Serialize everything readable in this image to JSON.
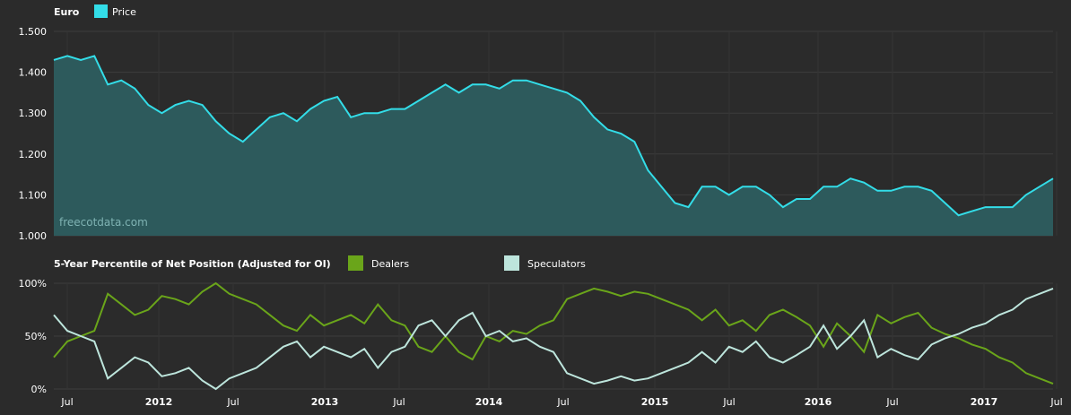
{
  "colors": {
    "background": "#2b2b2b",
    "grid": "#3c3c3c",
    "price": "#33dde8",
    "price_fill": "#2d5a5c",
    "dealers": "#6aa51a",
    "speculators": "#bde5dc"
  },
  "watermark": "freecotdata.com",
  "chart_data": [
    {
      "type": "area",
      "title": "Euro",
      "legend": [
        "Price"
      ],
      "ylim": [
        1.0,
        1.5
      ],
      "yticks": [
        "1.500",
        "1.400",
        "1.300",
        "1.200",
        "1.100",
        "1.000"
      ],
      "x_start": "2011-05",
      "x_end": "2017-07",
      "series": [
        {
          "name": "Price",
          "x": [
            "2011-05",
            "2011-06",
            "2011-07",
            "2011-08",
            "2011-09",
            "2011-10",
            "2011-11",
            "2011-12",
            "2012-01",
            "2012-02",
            "2012-03",
            "2012-04",
            "2012-05",
            "2012-06",
            "2012-07",
            "2012-08",
            "2012-09",
            "2012-10",
            "2012-11",
            "2012-12",
            "2013-01",
            "2013-02",
            "2013-03",
            "2013-04",
            "2013-05",
            "2013-06",
            "2013-07",
            "2013-08",
            "2013-09",
            "2013-10",
            "2013-11",
            "2013-12",
            "2014-01",
            "2014-02",
            "2014-03",
            "2014-04",
            "2014-05",
            "2014-06",
            "2014-07",
            "2014-08",
            "2014-09",
            "2014-10",
            "2014-11",
            "2014-12",
            "2015-01",
            "2015-02",
            "2015-03",
            "2015-04",
            "2015-05",
            "2015-06",
            "2015-07",
            "2015-08",
            "2015-09",
            "2015-10",
            "2015-11",
            "2015-12",
            "2016-01",
            "2016-02",
            "2016-03",
            "2016-04",
            "2016-05",
            "2016-06",
            "2016-07",
            "2016-08",
            "2016-09",
            "2016-10",
            "2016-11",
            "2016-12",
            "2017-01",
            "2017-02",
            "2017-03",
            "2017-04",
            "2017-05",
            "2017-06",
            "2017-07"
          ],
          "values": [
            1.43,
            1.44,
            1.43,
            1.44,
            1.37,
            1.38,
            1.36,
            1.32,
            1.3,
            1.32,
            1.33,
            1.32,
            1.28,
            1.25,
            1.23,
            1.26,
            1.29,
            1.3,
            1.28,
            1.31,
            1.33,
            1.34,
            1.29,
            1.3,
            1.3,
            1.31,
            1.31,
            1.33,
            1.35,
            1.37,
            1.35,
            1.37,
            1.37,
            1.36,
            1.38,
            1.38,
            1.37,
            1.36,
            1.35,
            1.33,
            1.29,
            1.26,
            1.25,
            1.23,
            1.16,
            1.12,
            1.08,
            1.07,
            1.12,
            1.12,
            1.1,
            1.12,
            1.12,
            1.1,
            1.07,
            1.09,
            1.09,
            1.12,
            1.12,
            1.14,
            1.13,
            1.11,
            1.11,
            1.12,
            1.12,
            1.11,
            1.08,
            1.05,
            1.06,
            1.07,
            1.07,
            1.07,
            1.1,
            1.12,
            1.14
          ]
        }
      ]
    },
    {
      "type": "line",
      "title": "5-Year Percentile of Net Position (Adjusted for OI)",
      "ylim": [
        0,
        100
      ],
      "yticks": [
        "100%",
        "50%",
        "0%"
      ],
      "xticks": [
        "Jul",
        "2012",
        "Jul",
        "2013",
        "Jul",
        "2014",
        "Jul",
        "2015",
        "Jul",
        "2016",
        "Jul",
        "2017",
        "Jul"
      ],
      "series": [
        {
          "name": "Dealers",
          "values": [
            30,
            45,
            50,
            55,
            90,
            80,
            70,
            75,
            88,
            85,
            80,
            92,
            100,
            90,
            85,
            80,
            70,
            60,
            55,
            70,
            60,
            65,
            70,
            62,
            80,
            65,
            60,
            40,
            35,
            50,
            35,
            28,
            50,
            45,
            55,
            52,
            60,
            65,
            85,
            90,
            95,
            92,
            88,
            92,
            90,
            85,
            80,
            75,
            65,
            75,
            60,
            65,
            55,
            70,
            75,
            68,
            60,
            40,
            62,
            50,
            35,
            70,
            62,
            68,
            72,
            58,
            52,
            48,
            42,
            38,
            30,
            25,
            15,
            10,
            5
          ]
        },
        {
          "name": "Speculators",
          "values": [
            70,
            55,
            50,
            45,
            10,
            20,
            30,
            25,
            12,
            15,
            20,
            8,
            0,
            10,
            15,
            20,
            30,
            40,
            45,
            30,
            40,
            35,
            30,
            38,
            20,
            35,
            40,
            60,
            65,
            50,
            65,
            72,
            50,
            55,
            45,
            48,
            40,
            35,
            15,
            10,
            5,
            8,
            12,
            8,
            10,
            15,
            20,
            25,
            35,
            25,
            40,
            35,
            45,
            30,
            25,
            32,
            40,
            60,
            38,
            50,
            65,
            30,
            38,
            32,
            28,
            42,
            48,
            52,
            58,
            62,
            70,
            75,
            85,
            90,
            95
          ]
        }
      ]
    }
  ]
}
